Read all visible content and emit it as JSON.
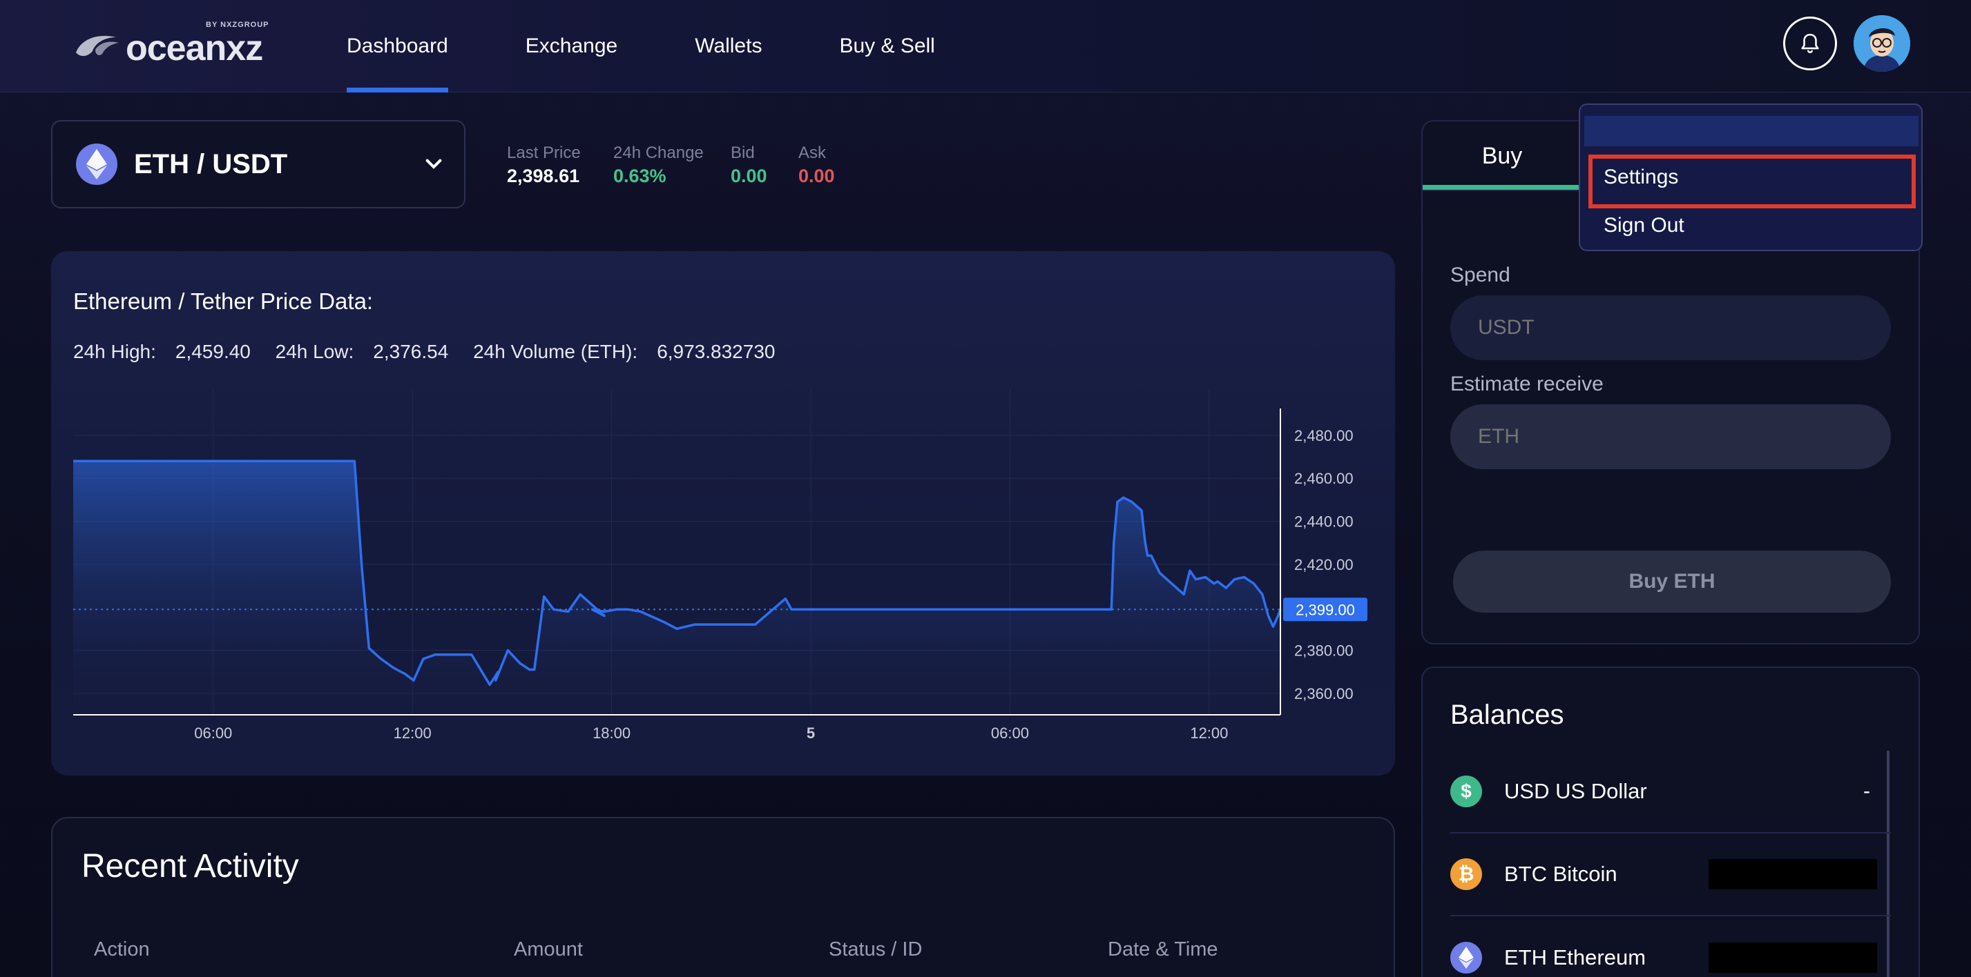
{
  "header": {
    "logo_text": "oceanxz",
    "logo_by": "BY NXZGROUP",
    "nav": [
      {
        "label": "Dashboard",
        "active": true
      },
      {
        "label": "Exchange",
        "active": false
      },
      {
        "label": "Wallets",
        "active": false
      },
      {
        "label": "Buy & Sell",
        "active": false
      }
    ],
    "bell_icon": "bell-icon",
    "avatar_icon": "user-avatar"
  },
  "account_menu": {
    "items": [
      "Settings",
      "Sign Out"
    ],
    "highlighted": "Settings"
  },
  "market": {
    "pair": "ETH / USDT",
    "stats": [
      {
        "label": "Last Price",
        "value": "2,398.61",
        "color": "#ffffff"
      },
      {
        "label": "24h Change",
        "value": "0.63%",
        "color": "#46c38c"
      },
      {
        "label": "Bid",
        "value": "0.00",
        "color": "#46c38c"
      },
      {
        "label": "Ask",
        "value": "0.00",
        "color": "#e05757"
      }
    ]
  },
  "chart": {
    "title": "Ethereum / Tether Price Data:",
    "high_label": "24h High:",
    "high_value": "2,459.40",
    "low_label": "24h Low:",
    "low_value": "2,376.54",
    "volume_label": "24h Volume (ETH):",
    "volume_value": "6,973.832730",
    "current_label": "2,399.00"
  },
  "chart_data": {
    "type": "area",
    "x_tick_labels": [
      "06:00",
      "12:00",
      "18:00",
      "5",
      "06:00",
      "12:00"
    ],
    "y_tick_labels": [
      "2,480.00",
      "2,460.00",
      "2,440.00",
      "2,420.00",
      "2,380.00",
      "2,360.00"
    ],
    "ylim": [
      2350,
      2495
    ],
    "current_value": 2399.0,
    "line_color": "#2f6ff0",
    "series": [
      {
        "x": [
          0,
          0.233,
          0.239,
          0.245,
          0.255,
          0.265,
          0.268,
          0.275,
          0.282,
          0.29,
          0.3,
          0.31,
          0.315,
          0.322,
          0.33,
          0.345,
          0.352,
          0.35,
          0.36,
          0.37,
          0.378,
          0.382,
          0.39,
          0.398,
          0.41,
          0.42,
          0.44,
          0.43,
          0.44,
          0.45,
          0.46,
          0.47,
          0.49,
          0.5,
          0.515,
          0.55,
          0.565,
          0.59,
          0.595,
          0.61,
          0.6,
          0.86,
          0.862,
          0.865,
          0.87,
          0.877,
          0.885,
          0.888,
          0.89,
          0.893,
          0.9,
          0.92,
          0.925,
          0.93,
          0.938,
          0.945,
          0.948,
          0.955,
          0.962,
          0.97,
          0.978,
          0.985,
          0.99,
          0.994,
          0.998,
          1
        ],
        "values": [
          2468,
          2468,
          2419,
          2381,
          2376,
          2372,
          2371,
          2369,
          2366,
          2376,
          2378,
          2378,
          2378,
          2378,
          2378,
          2364,
          2370,
          2366,
          2380,
          2374,
          2371,
          2371,
          2405,
          2399,
          2398,
          2406,
          2396,
          2399,
          2398,
          2399,
          2399,
          2398,
          2393,
          2390,
          2392,
          2392,
          2392,
          2404,
          2399,
          2399,
          2399,
          2399,
          2430,
          2449,
          2451,
          2449,
          2445,
          2430,
          2424,
          2424,
          2416,
          2406,
          2417,
          2413,
          2414,
          2411,
          2412,
          2409,
          2413,
          2414,
          2411,
          2406,
          2396,
          2391,
          2396,
          2399
        ]
      }
    ]
  },
  "trade": {
    "tab_buy": "Buy",
    "spend_label": "Spend",
    "spend_placeholder": "USDT",
    "receive_label": "Estimate receive",
    "receive_placeholder": "ETH",
    "buy_button": "Buy ETH"
  },
  "balances": {
    "title": "Balances",
    "rows": [
      {
        "symbol": "$",
        "name": "USD US Dollar",
        "value": "-",
        "icon_color": "#3fb98c",
        "redacted": false
      },
      {
        "symbol": "₿",
        "name": "BTC Bitcoin",
        "value": "",
        "icon_color": "#f2a038",
        "redacted": true
      },
      {
        "symbol": "♦",
        "name": "ETH Ethereum",
        "value": "",
        "icon_color": "#6f7ee8",
        "redacted": true
      }
    ]
  },
  "activity": {
    "title": "Recent Activity",
    "columns": [
      "Action",
      "Amount",
      "Status / ID",
      "Date & Time"
    ]
  }
}
